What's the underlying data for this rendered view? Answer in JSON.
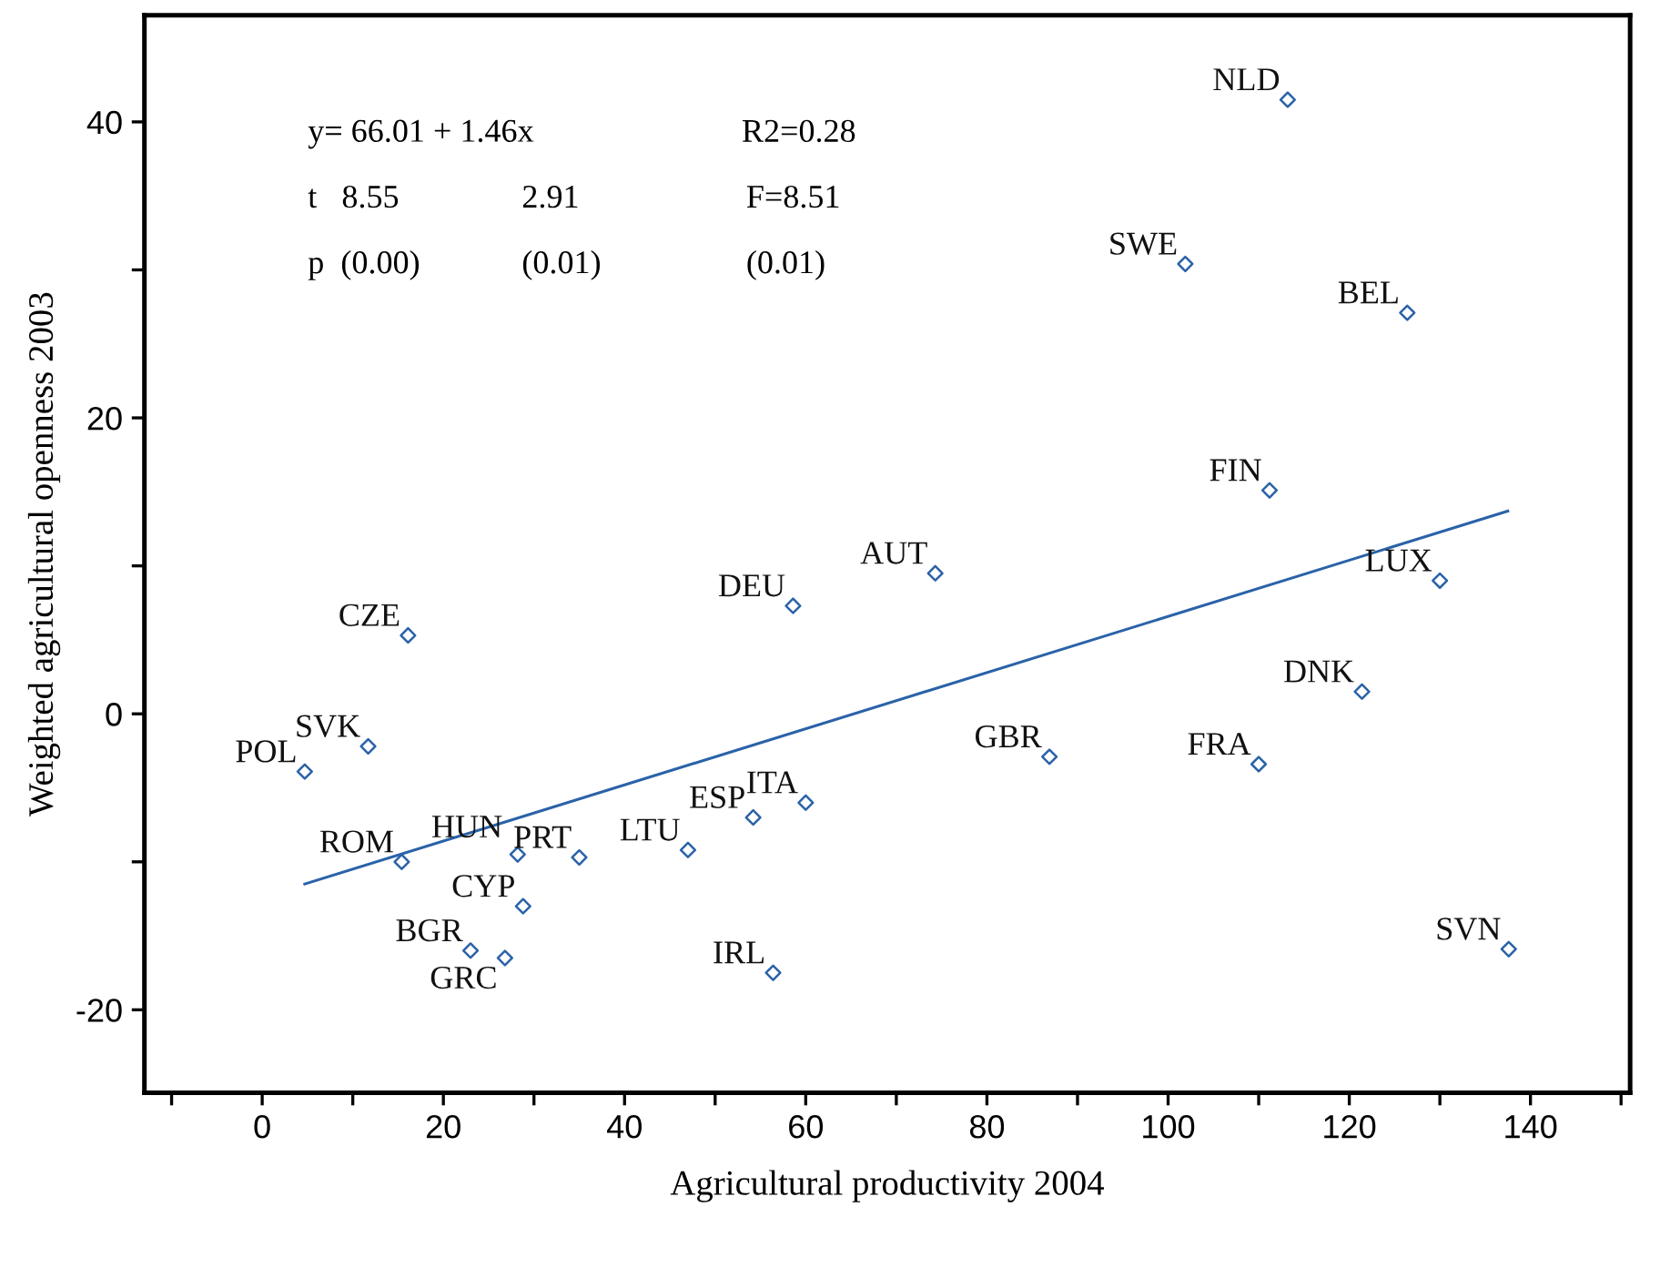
{
  "chart_data": {
    "type": "scatter",
    "xlabel": "Agricultural productivity 2004",
    "ylabel": "Weighted agricultural openness 2003",
    "xlim": [
      -13,
      151
    ],
    "ylim": [
      -25.6,
      47.2
    ],
    "xticks": [
      {
        "value": -10,
        "label": null
      },
      0,
      {
        "value": 10,
        "label": null
      },
      20,
      {
        "value": 30,
        "label": null
      },
      40,
      {
        "value": 50,
        "label": null
      },
      60,
      {
        "value": 70,
        "label": null
      },
      80,
      {
        "value": 90,
        "label": null
      },
      100,
      {
        "value": 110,
        "label": null
      },
      120,
      {
        "value": 130,
        "label": null
      },
      140,
      {
        "value": 150,
        "label": null
      }
    ],
    "yticks": [
      {
        "value": -20,
        "label": "-20"
      },
      {
        "value": -10,
        "label": null
      },
      0,
      {
        "value": 10,
        "label": null
      },
      20,
      {
        "value": 30,
        "label": null
      },
      40
    ],
    "grid": false,
    "series": [
      {
        "marker": "diamond",
        "color": "#2a62a8",
        "x": [
          113.2,
          101.9,
          126.4,
          111.2,
          74.3,
          58.6,
          130.0,
          16.1,
          121.4,
          11.7,
          4.7,
          86.9,
          110.0,
          60.0,
          54.2,
          47.0,
          35.0,
          28.2,
          15.4,
          28.8,
          23.0,
          26.8,
          56.4,
          137.6
        ],
        "values": [
          41.5,
          30.4,
          27.1,
          15.1,
          9.5,
          7.3,
          9.0,
          5.3,
          1.5,
          -2.2,
          -3.9,
          -2.9,
          -3.4,
          -6.0,
          -7.0,
          -9.2,
          -9.7,
          -9.5,
          -10.0,
          -13.0,
          -16.0,
          -16.5,
          -17.5,
          -15.9
        ]
      },
      {
        "type": "line",
        "line_style": "solid",
        "color": "#2a62a8",
        "x": [
          4.7,
          137.5
        ],
        "values": [
          -11.5,
          13.7
        ]
      }
    ],
    "annotations": [
      {
        "text": "NLD",
        "x": 113.2,
        "y": 41.5
      },
      {
        "text": "SWE",
        "x": 101.9,
        "y": 30.4
      },
      {
        "text": "BEL",
        "x": 126.4,
        "y": 27.1
      },
      {
        "text": "FIN",
        "x": 111.2,
        "y": 15.1
      },
      {
        "text": "AUT",
        "x": 74.3,
        "y": 9.5
      },
      {
        "text": "DEU",
        "x": 58.6,
        "y": 7.3
      },
      {
        "text": "LUX",
        "x": 130.0,
        "y": 9.0
      },
      {
        "text": "CZE",
        "x": 16.1,
        "y": 5.3
      },
      {
        "text": "DNK",
        "x": 121.4,
        "y": 1.5
      },
      {
        "text": "SVK",
        "x": 11.7,
        "y": -2.2
      },
      {
        "text": "POL",
        "x": 4.7,
        "y": -3.9
      },
      {
        "text": "GBR",
        "x": 86.9,
        "y": -2.9
      },
      {
        "text": "FRA",
        "x": 110.0,
        "y": -3.4
      },
      {
        "text": "ITA",
        "x": 60.0,
        "y": -6.0
      },
      {
        "text": "ESP",
        "x": 54.2,
        "y": -7.0
      },
      {
        "text": "LTU",
        "x": 47.0,
        "y": -9.2
      },
      {
        "text": "PRT",
        "x": 35.0,
        "y": -9.7
      },
      {
        "text": "HUN",
        "x": 28.2,
        "y": -9.5
      },
      {
        "text": "ROM",
        "x": 15.4,
        "y": -10.0
      },
      {
        "text": "CYP",
        "x": 28.8,
        "y": -13.0
      },
      {
        "text": "BGR",
        "x": 23.0,
        "y": -16.0
      },
      {
        "text": "GRC",
        "x": 26.8,
        "y": -16.5
      },
      {
        "text": "IRL",
        "x": 56.4,
        "y": -17.5
      },
      {
        "text": "SVN",
        "x": 137.6,
        "y": -15.9
      },
      "y= 66.01 + 1.46x",
      "R2=0.28",
      "t   8.55",
      "2.91",
      "F=8.51",
      "p  (0.00)",
      "(0.01)",
      "(0.01)"
    ]
  }
}
